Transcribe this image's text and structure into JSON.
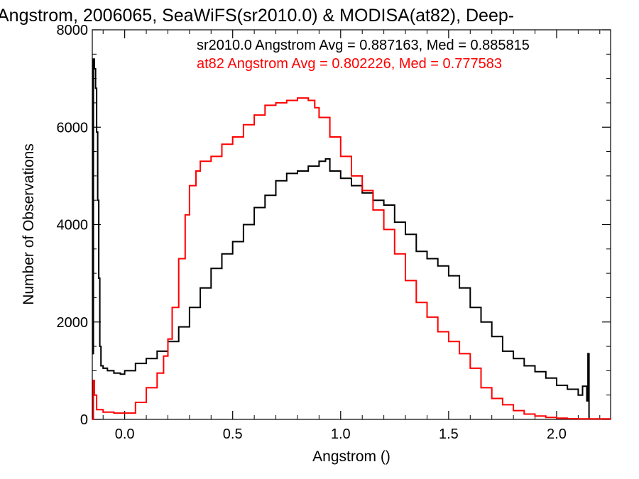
{
  "chart_data": {
    "type": "line",
    "title": "Angstrom, 2006065, SeaWiFS(sr2010.0) & MODISA(at82), Deep-",
    "xlabel": "Angstrom ()",
    "ylabel": "Number of Observations",
    "xlim": [
      -0.15,
      2.25
    ],
    "ylim": [
      0,
      8000
    ],
    "x_ticks": [
      0.0,
      0.5,
      1.0,
      1.5,
      2.0
    ],
    "x_tick_labels": [
      "0.0",
      "0.5",
      "1.0",
      "1.5",
      "2.0"
    ],
    "y_ticks": [
      0,
      2000,
      4000,
      6000,
      8000
    ],
    "y_tick_labels": [
      "0",
      "2000",
      "4000",
      "6000",
      "8000"
    ],
    "step": "histogram",
    "grid": false,
    "series": [
      {
        "name": "sr2010.0",
        "color": "#000000",
        "annotation": "sr2010.0 Angstrom Avg = 0.887163, Med = 0.885815",
        "points": [
          [
            -0.15,
            1350
          ],
          [
            -0.145,
            7400
          ],
          [
            -0.14,
            7200
          ],
          [
            -0.135,
            6800
          ],
          [
            -0.13,
            5900
          ],
          [
            -0.125,
            4500
          ],
          [
            -0.12,
            2900
          ],
          [
            -0.115,
            1500
          ],
          [
            -0.11,
            1100
          ],
          [
            -0.1,
            1050
          ],
          [
            -0.08,
            1000
          ],
          [
            -0.05,
            950
          ],
          [
            -0.02,
            930
          ],
          [
            0.0,
            1000
          ],
          [
            0.05,
            1150
          ],
          [
            0.1,
            1250
          ],
          [
            0.15,
            1400
          ],
          [
            0.2,
            1600
          ],
          [
            0.25,
            1900
          ],
          [
            0.3,
            2300
          ],
          [
            0.35,
            2700
          ],
          [
            0.4,
            3100
          ],
          [
            0.45,
            3400
          ],
          [
            0.5,
            3650
          ],
          [
            0.55,
            4000
          ],
          [
            0.6,
            4350
          ],
          [
            0.65,
            4600
          ],
          [
            0.7,
            4900
          ],
          [
            0.75,
            5050
          ],
          [
            0.8,
            5100
          ],
          [
            0.85,
            5200
          ],
          [
            0.9,
            5300
          ],
          [
            0.93,
            5350
          ],
          [
            0.95,
            5100
          ],
          [
            1.0,
            4950
          ],
          [
            1.05,
            4800
          ],
          [
            1.1,
            4650
          ],
          [
            1.15,
            4500
          ],
          [
            1.2,
            4400
          ],
          [
            1.25,
            4050
          ],
          [
            1.3,
            3800
          ],
          [
            1.35,
            3450
          ],
          [
            1.4,
            3300
          ],
          [
            1.45,
            3150
          ],
          [
            1.5,
            2950
          ],
          [
            1.55,
            2700
          ],
          [
            1.6,
            2300
          ],
          [
            1.65,
            2000
          ],
          [
            1.7,
            1700
          ],
          [
            1.75,
            1400
          ],
          [
            1.8,
            1250
          ],
          [
            1.85,
            1100
          ],
          [
            1.9,
            980
          ],
          [
            1.95,
            850
          ],
          [
            2.0,
            700
          ],
          [
            2.05,
            620
          ],
          [
            2.1,
            500
          ],
          [
            2.12,
            680
          ],
          [
            2.14,
            380
          ],
          [
            2.145,
            1350
          ],
          [
            2.15,
            0
          ]
        ]
      },
      {
        "name": "at82",
        "color": "#ff0000",
        "annotation": "at82 Angstrom Avg = 0.802226, Med = 0.777583",
        "points": [
          [
            -0.15,
            0
          ],
          [
            -0.145,
            800
          ],
          [
            -0.14,
            500
          ],
          [
            -0.13,
            200
          ],
          [
            -0.1,
            150
          ],
          [
            -0.05,
            130
          ],
          [
            0.0,
            130
          ],
          [
            0.05,
            350
          ],
          [
            0.1,
            650
          ],
          [
            0.15,
            950
          ],
          [
            0.18,
            1300
          ],
          [
            0.2,
            1650
          ],
          [
            0.22,
            2300
          ],
          [
            0.25,
            3300
          ],
          [
            0.28,
            4200
          ],
          [
            0.3,
            4800
          ],
          [
            0.33,
            5100
          ],
          [
            0.35,
            5300
          ],
          [
            0.4,
            5400
          ],
          [
            0.45,
            5650
          ],
          [
            0.5,
            5800
          ],
          [
            0.55,
            6050
          ],
          [
            0.6,
            6250
          ],
          [
            0.65,
            6450
          ],
          [
            0.7,
            6500
          ],
          [
            0.75,
            6550
          ],
          [
            0.8,
            6600
          ],
          [
            0.85,
            6550
          ],
          [
            0.88,
            6400
          ],
          [
            0.9,
            6200
          ],
          [
            0.95,
            5800
          ],
          [
            1.0,
            5400
          ],
          [
            1.05,
            5000
          ],
          [
            1.1,
            4700
          ],
          [
            1.15,
            4300
          ],
          [
            1.2,
            3900
          ],
          [
            1.25,
            3400
          ],
          [
            1.3,
            2850
          ],
          [
            1.35,
            2400
          ],
          [
            1.4,
            2100
          ],
          [
            1.45,
            1800
          ],
          [
            1.5,
            1600
          ],
          [
            1.55,
            1350
          ],
          [
            1.6,
            1050
          ],
          [
            1.65,
            650
          ],
          [
            1.7,
            430
          ],
          [
            1.75,
            300
          ],
          [
            1.8,
            180
          ],
          [
            1.85,
            110
          ],
          [
            1.9,
            70
          ],
          [
            1.95,
            40
          ],
          [
            2.0,
            25
          ],
          [
            2.05,
            15
          ],
          [
            2.1,
            10
          ],
          [
            2.25,
            5
          ]
        ]
      }
    ]
  }
}
